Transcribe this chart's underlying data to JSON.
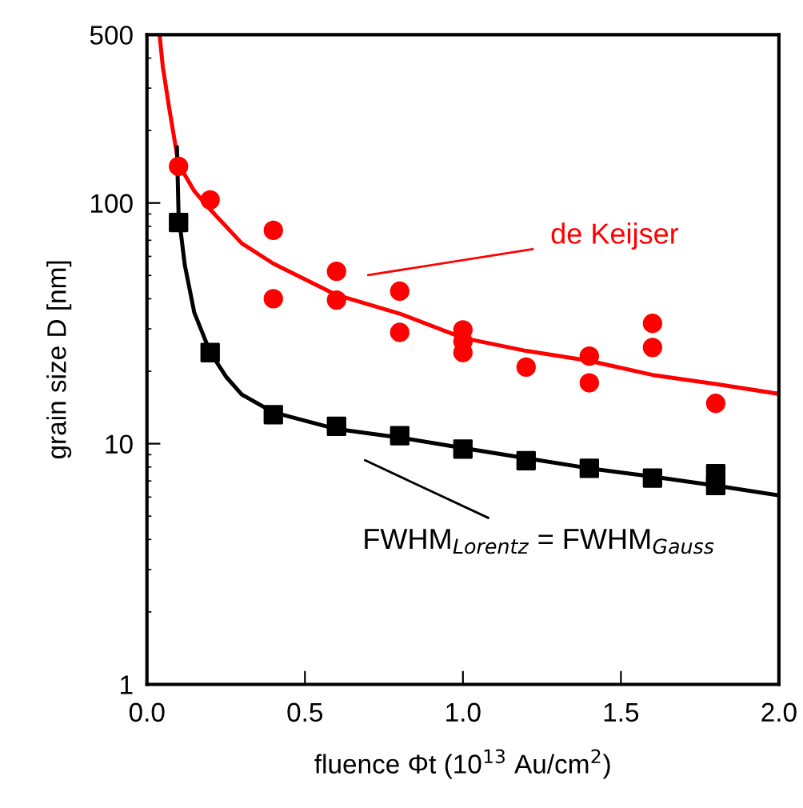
{
  "chart_data": {
    "type": "scatter",
    "xlabel": "fluence Φt (10$^{13}$ Au/cm$^{2}$)",
    "ylabel": "grain size D [nm]",
    "log": "y",
    "xlim": [
      0,
      2.0
    ],
    "ylim": [
      1,
      500
    ],
    "xticks": [
      {
        "value": 0,
        "label": "0.0"
      },
      {
        "value": 0.5,
        "label": "0.5"
      },
      {
        "value": 1.0,
        "label": "1.0"
      },
      {
        "value": 1.5,
        "label": "1.5"
      },
      {
        "value": 2.0,
        "label": "2.0"
      }
    ],
    "yticks": [
      1,
      10,
      100,
      500
    ],
    "grid": false,
    "legend": false,
    "series": [
      {
        "marker": "circle",
        "color": "#ff0000",
        "x": [
          0.1,
          0.2,
          0.4,
          0.4,
          0.6,
          0.6,
          0.8,
          0.8,
          1.0,
          1.0,
          1.0,
          1.2,
          1.4,
          1.4,
          1.6,
          1.6,
          1.8
        ],
        "values": [
          142,
          103,
          77,
          40,
          52,
          39.5,
          43,
          29,
          29.7,
          26.6,
          23.9,
          20.8,
          23.1,
          17.9,
          31.6,
          25.1,
          14.7
        ]
      },
      {
        "type": "line",
        "line_style": "solid",
        "marker": "none",
        "color": "#ff0000",
        "x": [
          0.04,
          0.05,
          0.07,
          0.1,
          0.15,
          0.2,
          0.3,
          0.4,
          0.6,
          0.8,
          1.0,
          1.2,
          1.4,
          1.6,
          1.8,
          2.0
        ],
        "values": [
          500,
          370,
          250,
          145,
          112,
          94,
          68,
          56,
          41.5,
          34.7,
          27.5,
          24.3,
          22.1,
          19.3,
          17.7,
          16.1
        ]
      },
      {
        "marker": "square",
        "color": "#000000",
        "x": [
          0.1,
          0.2,
          0.4,
          0.6,
          0.8,
          1.0,
          1.2,
          1.4,
          1.6,
          1.8,
          1.8
        ],
        "values": [
          83,
          23.9,
          13.2,
          11.8,
          10.8,
          9.5,
          8.5,
          7.9,
          7.2,
          7.5,
          6.7
        ]
      },
      {
        "type": "line",
        "line_style": "solid",
        "marker": "none",
        "color": "#000000",
        "x": [
          0.095,
          0.1,
          0.12,
          0.15,
          0.2,
          0.25,
          0.3,
          0.4,
          0.6,
          0.8,
          1.0,
          1.2,
          1.4,
          1.6,
          1.8,
          2.0
        ],
        "values": [
          170,
          90,
          55,
          35,
          24,
          19,
          16,
          13.5,
          11.5,
          10.6,
          9.6,
          8.7,
          7.9,
          7.3,
          6.7,
          6.1
        ]
      }
    ],
    "annotations": [
      "de Keijser",
      "FWHM$_{Lorentz}$ = FWHM$_{Gauss}$"
    ]
  }
}
